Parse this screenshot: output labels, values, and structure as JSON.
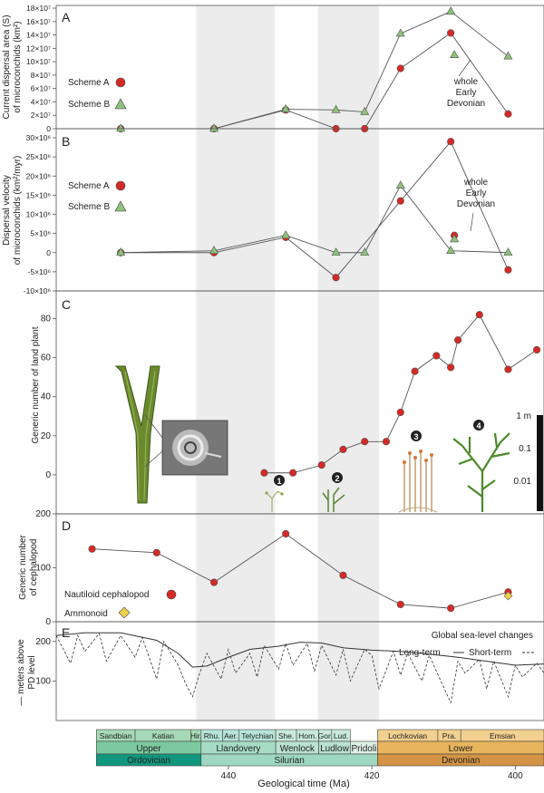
{
  "x_axis": {
    "label": "Geological time (Ma)",
    "range": [
      464,
      396
    ],
    "ticks": [
      440,
      420,
      400
    ],
    "grey_bands": [
      [
        444.5,
        433.5
      ],
      [
        427.5,
        419
      ]
    ]
  },
  "colors": {
    "scheme_a": "#d42a26",
    "scheme_b": "#8cc27a",
    "ammonoid": "#f2cf4a",
    "band": "#ececec",
    "line": "#555555"
  },
  "chart_data": [
    {
      "id": "A",
      "panel_label": "A",
      "type": "line",
      "ylabel": [
        "Current dispersal area (S)",
        "of microconchids (km²)"
      ],
      "ylim": [
        0,
        180000000
      ],
      "yticks": [
        {
          "v": 0,
          "t": "0"
        },
        {
          "v": 20000000,
          "t": "2×10⁷"
        },
        {
          "v": 40000000,
          "t": "4×10⁷"
        },
        {
          "v": 60000000,
          "t": "6×10⁷"
        },
        {
          "v": 80000000,
          "t": "8×10⁷"
        },
        {
          "v": 100000000,
          "t": "10×10⁷"
        },
        {
          "v": 120000000,
          "t": "12×10⁷"
        },
        {
          "v": 140000000,
          "t": "14×10⁷"
        },
        {
          "v": 160000000,
          "t": "16×10⁷"
        },
        {
          "v": 180000000,
          "t": "18×10⁷"
        }
      ],
      "series": [
        {
          "name": "Scheme A",
          "marker": "circle",
          "color": "#d42a26",
          "x": [
            455,
            442,
            432,
            425,
            421,
            416,
            409,
            401
          ],
          "y": [
            0,
            0,
            28000000,
            0,
            0,
            90000000,
            143000000,
            22000000
          ]
        },
        {
          "name": "Scheme B",
          "marker": "triangle",
          "color": "#8cc27a",
          "x": [
            455,
            442,
            432,
            425,
            421,
            416,
            409,
            401
          ],
          "y": [
            0,
            0,
            29000000,
            28000000,
            25000000,
            142000000,
            175000000,
            108000000
          ]
        }
      ],
      "extra_points": [
        {
          "x": 408.5,
          "y": 110000000,
          "marker": "triangle",
          "color": "#8cc27a"
        }
      ],
      "annotation": [
        "whole",
        "Early",
        "Devonian"
      ]
    },
    {
      "id": "B",
      "panel_label": "B",
      "type": "line",
      "ylabel": [
        "Dispersal velocity",
        "of microconchids (km²/myr)"
      ],
      "ylim": [
        -10000000,
        30000000
      ],
      "yticks": [
        {
          "v": -10000000,
          "t": "-10×10⁶"
        },
        {
          "v": -5000000,
          "t": "-5×10⁶"
        },
        {
          "v": 0,
          "t": "0"
        },
        {
          "v": 5000000,
          "t": "5×10⁶"
        },
        {
          "v": 10000000,
          "t": "10×10⁶"
        },
        {
          "v": 15000000,
          "t": "15×10⁶"
        },
        {
          "v": 20000000,
          "t": "20×10⁶"
        },
        {
          "v": 25000000,
          "t": "25×10⁶"
        },
        {
          "v": 30000000,
          "t": "30×10⁶"
        }
      ],
      "series": [
        {
          "name": "Scheme A",
          "marker": "circle",
          "color": "#d42a26",
          "x": [
            455,
            442,
            432,
            425,
            416,
            409,
            401
          ],
          "y": [
            0,
            0,
            4000000,
            -6500000,
            13500000,
            29000000,
            -4500000
          ]
        },
        {
          "name": "Scheme B",
          "marker": "triangle",
          "color": "#8cc27a",
          "x": [
            455,
            442,
            432,
            425,
            421,
            416,
            409,
            401
          ],
          "y": [
            0,
            500000,
            4500000,
            0,
            0,
            17500000,
            500000,
            0
          ]
        }
      ],
      "extra_points": [
        {
          "x": 408.5,
          "y": 4500000,
          "marker": "circle",
          "color": "#d42a26"
        },
        {
          "x": 408.5,
          "y": 3500000,
          "marker": "triangle",
          "color": "#8cc27a"
        }
      ],
      "annotation": [
        "whole",
        "Early",
        "Devonian"
      ]
    },
    {
      "id": "C",
      "panel_label": "C",
      "type": "line",
      "ylabel": [
        "Generic number of land plant"
      ],
      "ylim": [
        -20,
        90
      ],
      "yticks": [
        {
          "v": 0,
          "t": "0"
        },
        {
          "v": 20,
          "t": "20"
        },
        {
          "v": 40,
          "t": "40"
        },
        {
          "v": 60,
          "t": "60"
        },
        {
          "v": 80,
          "t": "80"
        }
      ],
      "series": [
        {
          "name": "Land plants",
          "marker": "circle",
          "color": "#d42a26",
          "x": [
            435,
            431,
            427,
            424,
            421,
            418,
            416,
            414,
            411,
            409,
            408,
            405,
            401,
            397
          ],
          "y": [
            1,
            1,
            5,
            13,
            17,
            17,
            32,
            53,
            61,
            55,
            69,
            82,
            54,
            64
          ]
        }
      ],
      "plant_markers": [
        "1",
        "2",
        "3",
        "4"
      ],
      "height_scale": [
        "1 m",
        "0.1",
        "0.01"
      ]
    },
    {
      "id": "D",
      "panel_label": "D",
      "type": "line",
      "ylabel": [
        "Generic number",
        "of cephalopod"
      ],
      "ylim": [
        0,
        200
      ],
      "yticks": [
        {
          "v": 0,
          "t": "0"
        },
        {
          "v": 100,
          "t": "100"
        },
        {
          "v": 200,
          "t": "200"
        }
      ],
      "series": [
        {
          "name": "Nautiloid cephalopod",
          "marker": "circle",
          "color": "#d42a26",
          "x": [
            459,
            450,
            442,
            432,
            424,
            416,
            409,
            401
          ],
          "y": [
            135,
            128,
            73,
            163,
            86,
            32,
            25,
            55
          ]
        },
        {
          "name": "Ammonoid",
          "marker": "diamond",
          "color": "#f2cf4a",
          "x": [
            401
          ],
          "y": [
            48
          ]
        }
      ]
    },
    {
      "id": "E",
      "panel_label": "E",
      "type": "line",
      "title": "Global sea-level changes",
      "ylabel": [
        "— meters above",
        "PD level"
      ],
      "ylim": [
        0,
        250
      ],
      "yticks": [
        {
          "v": 100,
          "t": "100"
        },
        {
          "v": 200,
          "t": "200"
        }
      ],
      "series": [
        {
          "name": "Long-term",
          "style": "solid",
          "x": [
            464,
            460,
            455,
            450,
            447,
            445,
            443,
            440,
            437,
            433,
            430,
            427,
            424,
            420,
            416,
            412,
            408,
            404,
            400,
            396
          ],
          "y": [
            215,
            222,
            222,
            203,
            170,
            135,
            138,
            160,
            180,
            188,
            198,
            196,
            184,
            178,
            175,
            168,
            160,
            150,
            140,
            143
          ]
        },
        {
          "name": "Short-term",
          "style": "dashed",
          "x": [
            464,
            462,
            461,
            460,
            458,
            457,
            455,
            453,
            452,
            450,
            449,
            447,
            446,
            445,
            444,
            443,
            441,
            440,
            439,
            437,
            436,
            435,
            433,
            432,
            431,
            429,
            428,
            427,
            425,
            424,
            423,
            421,
            420,
            419,
            417,
            416,
            415,
            413,
            412,
            411,
            409,
            408,
            407,
            405,
            404,
            403,
            401,
            400,
            399,
            397,
            396
          ],
          "y": [
            215,
            145,
            215,
            175,
            220,
            150,
            215,
            160,
            210,
            105,
            200,
            140,
            95,
            60,
            120,
            170,
            105,
            180,
            120,
            170,
            110,
            190,
            130,
            195,
            140,
            195,
            125,
            190,
            115,
            180,
            100,
            180,
            165,
            80,
            175,
            115,
            170,
            100,
            165,
            125,
            45,
            150,
            120,
            155,
            80,
            150,
            60,
            140,
            110,
            145,
            120
          ]
        }
      ],
      "legend": {
        "long": "Long-term",
        "short": "Short-term"
      }
    }
  ],
  "timescale": {
    "stages": [
      {
        "label": "Sandbian",
        "from": 458.4,
        "to": 453.0,
        "color": "#a6d9b6"
      },
      {
        "label": "Katian",
        "from": 453.0,
        "to": 445.2,
        "color": "#a6d9b6"
      },
      {
        "label": "Hir.",
        "from": 445.2,
        "to": 443.8,
        "color": "#a6d9b6"
      },
      {
        "label": "Rhu.",
        "from": 443.8,
        "to": 440.8,
        "color": "#b7e4d7"
      },
      {
        "label": "Aer.",
        "from": 440.8,
        "to": 438.5,
        "color": "#b7e4d7"
      },
      {
        "label": "Telychian",
        "from": 438.5,
        "to": 433.4,
        "color": "#b7e4d7"
      },
      {
        "label": "She.",
        "from": 433.4,
        "to": 430.5,
        "color": "#c9eadb"
      },
      {
        "label": "Hom.",
        "from": 430.5,
        "to": 427.4,
        "color": "#c9eadb"
      },
      {
        "label": "Gor.",
        "from": 427.4,
        "to": 425.6,
        "color": "#c9eadb"
      },
      {
        "label": "Lud.",
        "from": 425.6,
        "to": 423.0,
        "color": "#c9eadb"
      },
      {
        "label": "Lochkovian",
        "from": 419.2,
        "to": 410.8,
        "color": "#f2d08f"
      },
      {
        "label": "Pra.",
        "from": 410.8,
        "to": 407.6,
        "color": "#f2d08f"
      },
      {
        "label": "Emsian",
        "from": 407.6,
        "to": 393.3,
        "color": "#f2d08f"
      }
    ],
    "series": [
      {
        "label": "Upper",
        "from": 458.4,
        "to": 443.8,
        "color": "#7cc9a0"
      },
      {
        "label": "Llandovery",
        "from": 443.8,
        "to": 433.4,
        "color": "#a6dcc4"
      },
      {
        "label": "Wenlock",
        "from": 433.4,
        "to": 427.4,
        "color": "#b9e2cf"
      },
      {
        "label": "Ludlow",
        "from": 427.4,
        "to": 423.0,
        "color": "#b9e2cf"
      },
      {
        "label": "Pridoli",
        "from": 423.0,
        "to": 419.2,
        "color": "#dff0e6"
      },
      {
        "label": "Lower",
        "from": 419.2,
        "to": 393.3,
        "color": "#e8b45c"
      }
    ],
    "systems": [
      {
        "label": "Ordovician",
        "from": 458.4,
        "to": 443.8,
        "color": "#10977e"
      },
      {
        "label": "Silurian",
        "from": 443.8,
        "to": 419.2,
        "color": "#9fd8c2"
      },
      {
        "label": "Devonian",
        "from": 419.2,
        "to": 393.3,
        "color": "#d49345"
      }
    ]
  }
}
